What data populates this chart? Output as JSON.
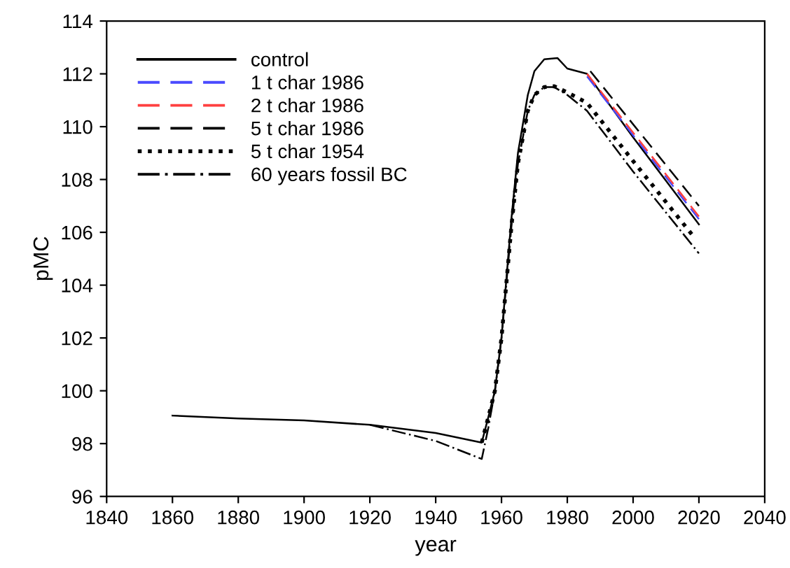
{
  "chart_data": {
    "type": "line",
    "xlabel": "year",
    "ylabel": "pMC",
    "xlim": [
      1840,
      2040
    ],
    "xticks": [
      1840,
      1860,
      1880,
      1900,
      1920,
      1940,
      1960,
      1980,
      2000,
      2020,
      2040
    ],
    "ylim": [
      96,
      114
    ],
    "yticks": [
      96,
      98,
      100,
      102,
      104,
      106,
      108,
      110,
      112,
      114
    ],
    "grid": false,
    "legend": "top left",
    "marker": "none",
    "series": [
      {
        "name": "control",
        "color": "#000000",
        "line_style": "solid",
        "x": [
          1860,
          1880,
          1900,
          1920,
          1940,
          1954,
          1956,
          1958,
          1960,
          1962,
          1963,
          1965,
          1968,
          1970,
          1973,
          1977,
          1980,
          1986,
          2000,
          2020
        ],
        "values": [
          99.06,
          98.95,
          98.88,
          98.71,
          98.4,
          98.04,
          99.0,
          100.0,
          102.0,
          105.0,
          106.5,
          109.0,
          111.2,
          112.1,
          112.55,
          112.6,
          112.2,
          112.0,
          109.6,
          106.3
        ]
      },
      {
        "name": "1 t char 1986",
        "color": "#4a4aff",
        "line_style": "dashed",
        "x": [
          1986,
          2020
        ],
        "values": [
          111.9,
          106.5
        ]
      },
      {
        "name": "2 t char 1986",
        "color": "#ff4040",
        "line_style": "dashed",
        "x": [
          1986,
          2020
        ],
        "values": [
          112.0,
          106.6
        ]
      },
      {
        "name": "5 t char 1986",
        "color": "#000000",
        "line_style": "dashed",
        "x": [
          1987,
          2020
        ],
        "values": [
          112.1,
          107.0
        ]
      },
      {
        "name": "5 t char 1954",
        "color": "#000000",
        "line_style": "dotted",
        "x": [
          1954,
          1956,
          1958,
          1960,
          1962,
          1963,
          1965,
          1968,
          1970,
          1973,
          1976,
          1980,
          1986,
          2000,
          2018
        ],
        "values": [
          98.04,
          99.0,
          100.0,
          102.0,
          104.8,
          106.2,
          108.6,
          110.6,
          111.2,
          111.5,
          111.53,
          111.3,
          110.9,
          108.7,
          105.9
        ]
      },
      {
        "name": "60 years fossil BC",
        "color": "#000000",
        "line_style": "dashdot",
        "x": [
          1920,
          1940,
          1954,
          1956,
          1958,
          1960,
          1962,
          1963,
          1965,
          1968,
          1970,
          1973,
          1976,
          1980,
          1986,
          2000,
          2020
        ],
        "values": [
          98.71,
          98.1,
          97.42,
          98.6,
          100.0,
          102.0,
          104.8,
          106.2,
          108.6,
          110.6,
          111.2,
          111.5,
          111.5,
          111.2,
          110.6,
          108.3,
          105.2
        ]
      }
    ]
  }
}
